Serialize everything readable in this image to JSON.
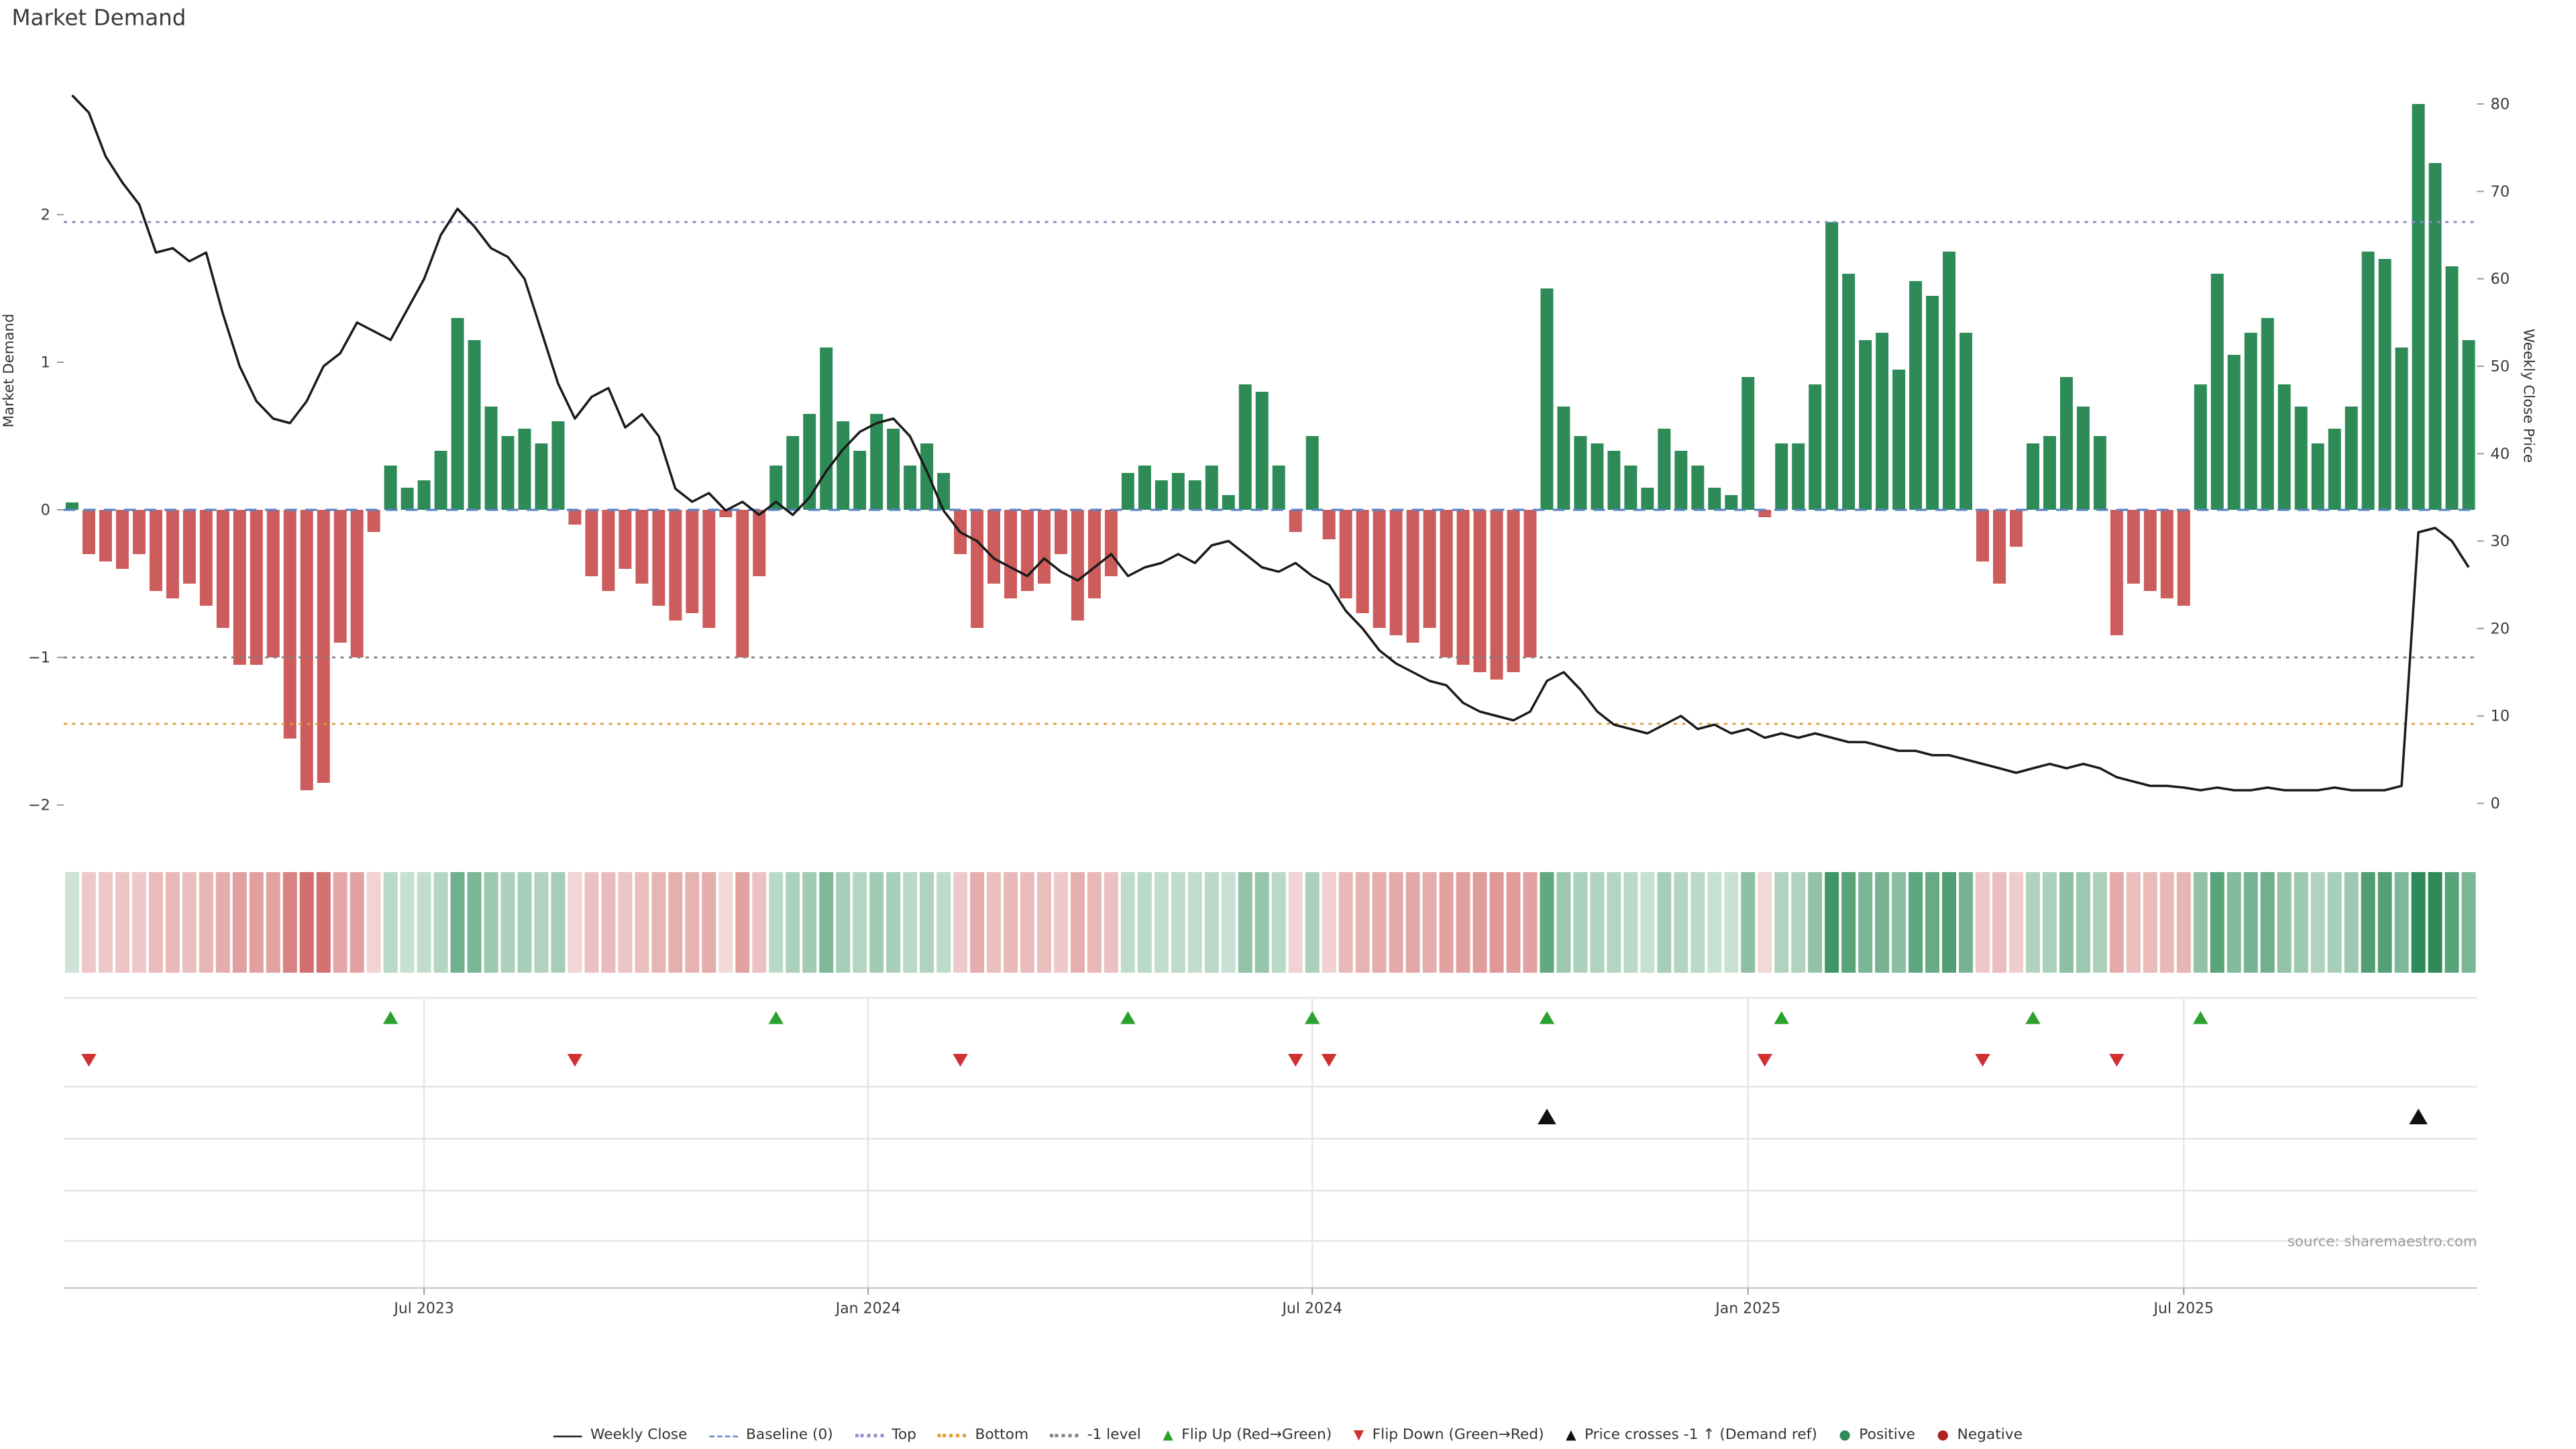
{
  "title": "Market Demand",
  "source": "source: sharemaestro.com",
  "axes": {
    "left_label": "Market Demand",
    "right_label": "Weekly Close Price",
    "left_ticks": [
      {
        "label": "2",
        "value": 2
      },
      {
        "label": "1",
        "value": 1
      },
      {
        "label": "0",
        "value": 0
      },
      {
        "label": "−1",
        "value": -1
      },
      {
        "label": "−2",
        "value": -2
      }
    ],
    "right_ticks": [
      {
        "label": "0",
        "value": 0
      },
      {
        "label": "10",
        "value": 10
      },
      {
        "label": "20",
        "value": 20
      },
      {
        "label": "30",
        "value": 30
      },
      {
        "label": "40",
        "value": 40
      },
      {
        "label": "50",
        "value": 50
      },
      {
        "label": "60",
        "value": 60
      },
      {
        "label": "70",
        "value": 70
      },
      {
        "label": "80",
        "value": 80
      }
    ],
    "x_ticks": [
      {
        "label": "Jul 2023",
        "week": 21
      },
      {
        "label": "Jan 2024",
        "week": 47.5
      },
      {
        "label": "Jul 2024",
        "week": 74
      },
      {
        "label": "Jan 2025",
        "week": 100
      },
      {
        "label": "Jul 2025",
        "week": 126
      }
    ]
  },
  "colors": {
    "positive": "#2e8b57",
    "negative": "#cd5c5c",
    "price_line": "#1a1a1a",
    "baseline": "#5b84c4",
    "top_line": "#8c8cce",
    "bottom_line": "#dd9a33",
    "minus1_line": "#808080",
    "flip_up": "#2ca02c",
    "flip_down": "#d13030",
    "price_cross": "#111111",
    "grid": "#e5e5e5",
    "axis_spine": "#cccccc",
    "tick_text": "#3a3a3a"
  },
  "legend": {
    "items": [
      {
        "id": "weekly-close",
        "label": "Weekly Close",
        "kind": "line",
        "style": "solid",
        "color": "#1a1a1a"
      },
      {
        "id": "baseline",
        "label": "Baseline (0)",
        "kind": "line",
        "style": "dashed",
        "color": "#5b84c4"
      },
      {
        "id": "top",
        "label": "Top",
        "kind": "line",
        "style": "dotted",
        "color": "#8c8cce"
      },
      {
        "id": "bottom",
        "label": "Bottom",
        "kind": "line",
        "style": "dotted",
        "color": "#dd9a33"
      },
      {
        "id": "minus1-level",
        "label": "-1 level",
        "kind": "line",
        "style": "dotted",
        "color": "#808080"
      },
      {
        "id": "flip-up",
        "label": "Flip Up (Red→Green)",
        "kind": "marker",
        "glyph": "▲",
        "color": "#2ca02c"
      },
      {
        "id": "flip-down",
        "label": "Flip Down (Green→Red)",
        "kind": "marker",
        "glyph": "▼",
        "color": "#d13030"
      },
      {
        "id": "price-cross",
        "label": "Price crosses -1 ↑ (Demand ref)",
        "kind": "marker",
        "glyph": "▲",
        "color": "#111111"
      },
      {
        "id": "positive",
        "label": "Positive",
        "kind": "marker",
        "glyph": "●",
        "color": "#2e8b57"
      },
      {
        "id": "negative",
        "label": "Negative",
        "kind": "marker",
        "glyph": "●",
        "color": "#b22222"
      }
    ]
  },
  "chart_data": {
    "type": "bar+line+heatmap",
    "x_unit": "week",
    "n_weeks": 144,
    "x_start": "Feb 2023",
    "x_end": "Nov 2025",
    "demand_series_name": "Market Demand",
    "price_series_name": "Weekly Close",
    "demand_axis_range": [
      -2.32,
      3.08
    ],
    "price_axis_range": [
      0,
      85.6
    ],
    "reference_lines": {
      "baseline": 0,
      "top": 1.95,
      "bottom": -1.45,
      "minus1": -1
    },
    "flip_up_weeks": [
      19,
      42,
      63,
      74,
      88,
      102,
      117,
      127
    ],
    "flip_down_weeks": [
      1,
      30,
      53,
      73,
      75,
      101,
      114,
      122
    ],
    "price_cross_weeks": [
      88,
      140
    ],
    "heatmap_rule": "sign-and-magnitude-of-demand",
    "demand": [
      0.05,
      -0.3,
      -0.35,
      -0.4,
      -0.3,
      -0.55,
      -0.6,
      -0.5,
      -0.65,
      -0.8,
      -1.05,
      -1.05,
      -1.0,
      -1.55,
      -1.9,
      -1.85,
      -0.9,
      -1.0,
      -0.15,
      0.3,
      0.15,
      0.2,
      0.4,
      1.3,
      1.15,
      0.7,
      0.5,
      0.55,
      0.45,
      0.6,
      -0.1,
      -0.45,
      -0.55,
      -0.4,
      -0.5,
      -0.65,
      -0.75,
      -0.7,
      -0.8,
      -0.05,
      -1.0,
      -0.45,
      0.3,
      0.5,
      0.65,
      1.1,
      0.6,
      0.4,
      0.65,
      0.55,
      0.3,
      0.45,
      0.25,
      -0.3,
      -0.8,
      -0.5,
      -0.6,
      -0.55,
      -0.5,
      -0.3,
      -0.75,
      -0.6,
      -0.45,
      0.25,
      0.3,
      0.2,
      0.25,
      0.2,
      0.3,
      0.1,
      0.85,
      0.8,
      0.3,
      -0.15,
      0.5,
      -0.2,
      -0.6,
      -0.7,
      -0.8,
      -0.85,
      -0.9,
      -0.8,
      -1.0,
      -1.05,
      -1.1,
      -1.15,
      -1.1,
      -1.0,
      1.5,
      0.7,
      0.5,
      0.45,
      0.4,
      0.3,
      0.15,
      0.55,
      0.4,
      0.3,
      0.15,
      0.1,
      0.9,
      -0.05,
      0.45,
      0.45,
      0.85,
      1.95,
      1.6,
      1.15,
      1.2,
      0.95,
      1.55,
      1.45,
      1.75,
      1.2,
      -0.35,
      -0.5,
      -0.25,
      0.45,
      0.5,
      0.9,
      0.7,
      0.5,
      -0.85,
      -0.5,
      -0.55,
      -0.6,
      -0.65,
      0.85,
      1.6,
      1.05,
      1.2,
      1.3,
      0.85,
      0.7,
      0.45,
      0.55,
      0.7,
      1.75,
      1.7,
      1.1,
      2.75,
      2.35,
      1.65,
      1.15
    ],
    "price": [
      81,
      79,
      74,
      71,
      68.5,
      63,
      63.5,
      62,
      63,
      56,
      50,
      46,
      44,
      43.5,
      46,
      50,
      51.5,
      55,
      54,
      53,
      56.5,
      60,
      65,
      68,
      66,
      63.5,
      62.5,
      60,
      54,
      48,
      44,
      46.5,
      47.5,
      43,
      44.5,
      42,
      36,
      34.5,
      35.5,
      33.5,
      34.5,
      33,
      34.5,
      33,
      35,
      38,
      40.5,
      42.5,
      43.5,
      44,
      42,
      38,
      33.5,
      31,
      30,
      28,
      27,
      26,
      28,
      26.5,
      25.5,
      27,
      28.5,
      26,
      27,
      27.5,
      28.5,
      27.5,
      29.5,
      30,
      28.5,
      27,
      26.5,
      27.5,
      26,
      25,
      22,
      20,
      17.5,
      16,
      15,
      14,
      13.5,
      11.5,
      10.5,
      10,
      9.5,
      10.5,
      14,
      15,
      13,
      10.5,
      9,
      8.5,
      8,
      9,
      10,
      8.5,
      9,
      8,
      8.5,
      7.5,
      8,
      7.5,
      8,
      7.5,
      7,
      7,
      6.5,
      6,
      6,
      5.5,
      5.5,
      5,
      4.5,
      4,
      3.5,
      4,
      4.5,
      4,
      4.5,
      4,
      3,
      2.5,
      2,
      2,
      1.8,
      1.5,
      1.8,
      1.5,
      1.5,
      1.8,
      1.5,
      1.5,
      1.5,
      1.8,
      1.5,
      1.5,
      1.5,
      2,
      31,
      31.5,
      30,
      27
    ]
  }
}
